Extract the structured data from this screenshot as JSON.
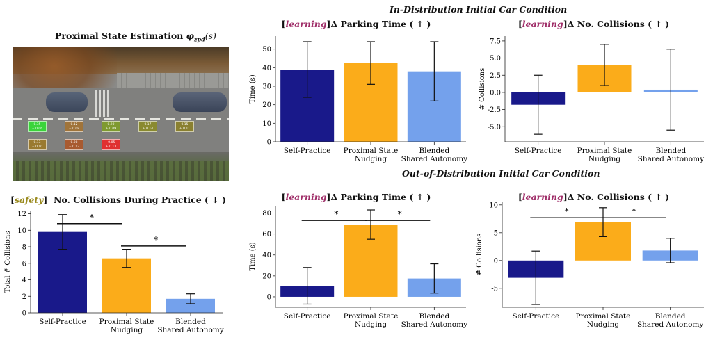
{
  "headers": {
    "in_dist": "In-Distribution Initial Car Condition",
    "out_dist": "Out-of-Distribution Initial Car Condition"
  },
  "scene": {
    "title_text": "Proximal State Estimation ",
    "title_math": "φ",
    "title_sub": "zpd",
    "title_tail": "(s)",
    "tiles": [
      {
        "label": "0.35\n± 0.06",
        "color": "#3ad43a"
      },
      {
        "label": "0.12\n± 0.08",
        "color": "#a0743a"
      },
      {
        "label": "0.20\n± 0.09",
        "color": "#7f9a30"
      },
      {
        "label": "0.17\n± 0.14",
        "color": "#8a8a30"
      },
      {
        "label": "0.15\n± 0.11",
        "color": "#8a8030"
      },
      {
        "label": "0.13\n± 0.10",
        "color": "#9a7a30"
      },
      {
        "label": "0.08\n± 0.13",
        "color": "#a85a30"
      },
      {
        "label": "-0.05\n± 0.13",
        "color": "#e03030"
      }
    ]
  },
  "colors": {
    "self_practice": "#19198a",
    "nudging": "#fbac1a",
    "blended": "#74a1ec"
  },
  "chart_data": [
    {
      "id": "safety",
      "type": "bar",
      "tag": "safety",
      "title": "No. Collisions During Practice ( ↓ )",
      "categories": [
        "Self-Practice",
        "Proximal State\nNudging",
        "Blended\nShared Autonomy"
      ],
      "values": [
        9.8,
        6.6,
        1.7
      ],
      "errors": [
        2.1,
        1.1,
        0.6
      ],
      "ylabel": "Total # Collisions",
      "ylim": [
        0,
        12.3
      ],
      "yticks": [
        0,
        2,
        4,
        6,
        8,
        10,
        12
      ],
      "significance": [
        {
          "from": 0,
          "to": 1,
          "y": 10.8,
          "label": "*"
        },
        {
          "from": 1,
          "to": 2,
          "y": 8.1,
          "label": "*"
        }
      ]
    },
    {
      "id": "in_time",
      "type": "bar",
      "tag": "learning",
      "title": "Δ Parking Time ( ↑ )",
      "categories": [
        "Self-Practice",
        "Proximal State\nNudging",
        "Blended\nShared Autonomy"
      ],
      "values": [
        39,
        42.5,
        38
      ],
      "errors": [
        15,
        11.5,
        16
      ],
      "ylabel": "Time (s)",
      "ylim": [
        0,
        57
      ],
      "yticks": [
        0,
        10,
        20,
        30,
        40,
        50
      ],
      "significance": []
    },
    {
      "id": "in_coll",
      "type": "bar",
      "tag": "learning",
      "title": "Δ No. Collisions ( ↑ )",
      "categories": [
        "Self-Practice",
        "Proximal State\nNudging",
        "Blended\nShared Autonomy"
      ],
      "values": [
        -1.8,
        4.0,
        0.4
      ],
      "errors": [
        4.3,
        3.0,
        5.9
      ],
      "ylabel": "# Collisions",
      "ylim": [
        -7.2,
        8.2
      ],
      "yticks": [
        -5.0,
        -2.5,
        0.0,
        2.5,
        5.0,
        7.5
      ],
      "yticklabels": [
        "-5.0",
        "-2.5",
        "0.0",
        "2.5",
        "5.0",
        "7.5"
      ],
      "significance": []
    },
    {
      "id": "out_time",
      "type": "bar",
      "tag": "learning",
      "title": "Δ Parking Time ( ↑ )",
      "categories": [
        "Self-Practice",
        "Proximal State\nNudging",
        "Blended\nShared Autonomy"
      ],
      "values": [
        10.5,
        69,
        17.5
      ],
      "errors": [
        17.5,
        14,
        14
      ],
      "ylabel": "Time (s)",
      "ylim": [
        -10,
        87
      ],
      "yticks": [
        0,
        20,
        40,
        60,
        80
      ],
      "significance": [
        {
          "from": 0,
          "to": 1,
          "y": 73,
          "label": "*"
        },
        {
          "from": 1,
          "to": 2,
          "y": 73,
          "label": "*"
        }
      ]
    },
    {
      "id": "out_coll",
      "type": "bar",
      "tag": "learning",
      "title": "Δ No. Collisions ( ↑ )",
      "categories": [
        "Self-Practice",
        "Proximal State\nNudging",
        "Blended\nShared Autonomy"
      ],
      "values": [
        -3.1,
        6.9,
        1.8
      ],
      "errors": [
        4.8,
        2.6,
        2.2
      ],
      "ylabel": "# Collisions",
      "ylim": [
        -8.4,
        10.6
      ],
      "yticks": [
        -5,
        0,
        5,
        10
      ],
      "significance": [
        {
          "from": 0,
          "to": 1,
          "y": 7.7,
          "label": "*"
        },
        {
          "from": 1,
          "to": 2,
          "y": 7.7,
          "label": "*"
        }
      ]
    }
  ]
}
